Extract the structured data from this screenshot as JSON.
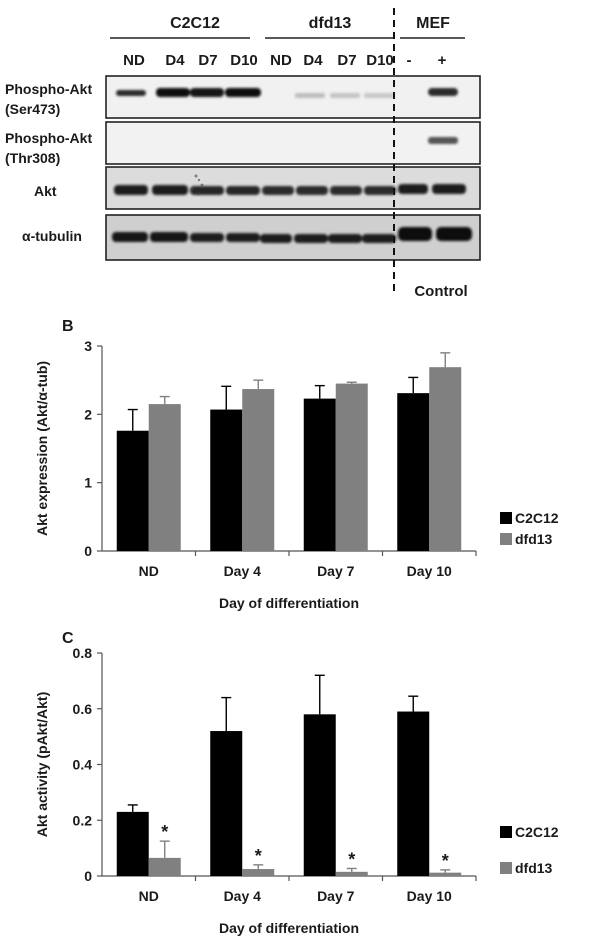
{
  "blot": {
    "groups": [
      {
        "name": "C2C12",
        "lanes": [
          "ND",
          "D4",
          "D7",
          "D10"
        ]
      },
      {
        "name": "dfd13",
        "lanes": [
          "ND",
          "D4",
          "D7",
          "D10"
        ]
      },
      {
        "name": "MEF",
        "lanes": [
          "-",
          "+"
        ]
      }
    ],
    "rows": [
      {
        "label_line1": "Phospho-Akt",
        "label_line2": "(Ser473)"
      },
      {
        "label_line1": "Phospho-Akt",
        "label_line2": "(Thr308)"
      },
      {
        "label_line1": "Akt",
        "label_line2": ""
      },
      {
        "label_line1": "α-tubulin",
        "label_line2": ""
      }
    ],
    "control_label": "Control"
  },
  "chart_data": [
    {
      "panel": "B",
      "type": "bar",
      "categories": [
        "ND",
        "Day 4",
        "Day 7",
        "Day 10"
      ],
      "series": [
        {
          "name": "C2C12",
          "color": "#000000",
          "values": [
            1.76,
            2.07,
            2.23,
            2.31
          ],
          "errors": [
            0.31,
            0.34,
            0.19,
            0.23
          ]
        },
        {
          "name": "dfd13",
          "color": "#808080",
          "values": [
            2.15,
            2.37,
            2.45,
            2.69
          ],
          "errors": [
            0.11,
            0.13,
            0.02,
            0.21
          ]
        }
      ],
      "xlabel": "Day of differentiation",
      "ylabel": "Akt expression (Akt/α-tub)",
      "ylim": [
        0,
        3
      ],
      "yticks": [
        "0",
        "1",
        "2",
        "3"
      ],
      "legend": "right",
      "grid": false
    },
    {
      "panel": "C",
      "type": "bar",
      "categories": [
        "ND",
        "Day 4",
        "Day 7",
        "Day 10"
      ],
      "series": [
        {
          "name": "C2C12",
          "color": "#000000",
          "values": [
            0.23,
            0.52,
            0.58,
            0.59
          ],
          "errors": [
            0.025,
            0.12,
            0.14,
            0.055
          ]
        },
        {
          "name": "dfd13",
          "color": "#808080",
          "values": [
            0.065,
            0.025,
            0.015,
            0.012
          ],
          "errors": [
            0.06,
            0.015,
            0.012,
            0.01
          ],
          "annotations": [
            "*",
            "*",
            "*",
            "*"
          ]
        }
      ],
      "xlabel": "Day of differentiation",
      "ylabel": "Akt activity (pAkt/Akt)",
      "ylim": [
        0,
        0.8
      ],
      "yticks": [
        "0",
        "0.2",
        "0.4",
        "0.6",
        "0.8"
      ],
      "legend": "right",
      "grid": false
    }
  ]
}
